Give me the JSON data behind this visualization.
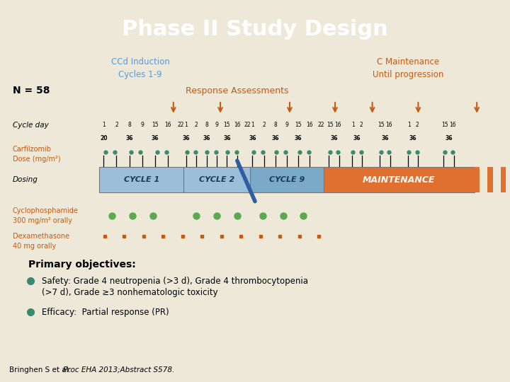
{
  "title": "Phase II Study Design",
  "title_bg": "#0e3463",
  "title_color": "#ffffff",
  "body_bg": "#ede8d8",
  "n_label": "N = 58",
  "induction_label": "CCd Induction\nCycles 1-9",
  "induction_color": "#5b9bd5",
  "maintenance_label": "C Maintenance\nUntil progression",
  "maintenance_color": "#c55a11",
  "response_label": "Response Assessments",
  "response_color": "#c55a11",
  "cycle_day_label": "Cycle day",
  "carfilzomib_label": "Carfilzomib\nDose (mg/m²)",
  "carfilzomib_color": "#c55a11",
  "dosing_label": "Dosing",
  "cyclo_label": "Cyclophosphamide\n300 mg/m² orally",
  "cyclo_color": "#c55a11",
  "dexa_label": "Dexamethasone\n40 mg orally",
  "dexa_color": "#c55a11",
  "primary_objectives_title": "Primary objectives:",
  "bullet1_line1": "Safety: Grade 4 neutropenia (>3 d), Grade 4 thrombocytopenia",
  "bullet1_line2": "(>7 d), Grade ≥3 nonhematologic toxicity",
  "bullet2": "Efficacy:  Partial response (PR)",
  "bullet_color": "#3a8a6e",
  "footer_normal": "Bringhen S et al. ",
  "footer_italic": "Proc EHA 2013;Abstract S578.",
  "cycle1_color": "#9bbfd8",
  "cycle2_color": "#9bbfd8",
  "cycle9_color": "#9bbfd8",
  "maintenance_box_color": "#e07030",
  "stripe_color": "#c05010",
  "C1_L": 0.195,
  "C1_R": 0.36,
  "C2_L": 0.36,
  "C2_R": 0.49,
  "C9_L": 0.49,
  "C9_R": 0.635,
  "MAINT_L": 0.635,
  "MAINT_R": 0.93
}
